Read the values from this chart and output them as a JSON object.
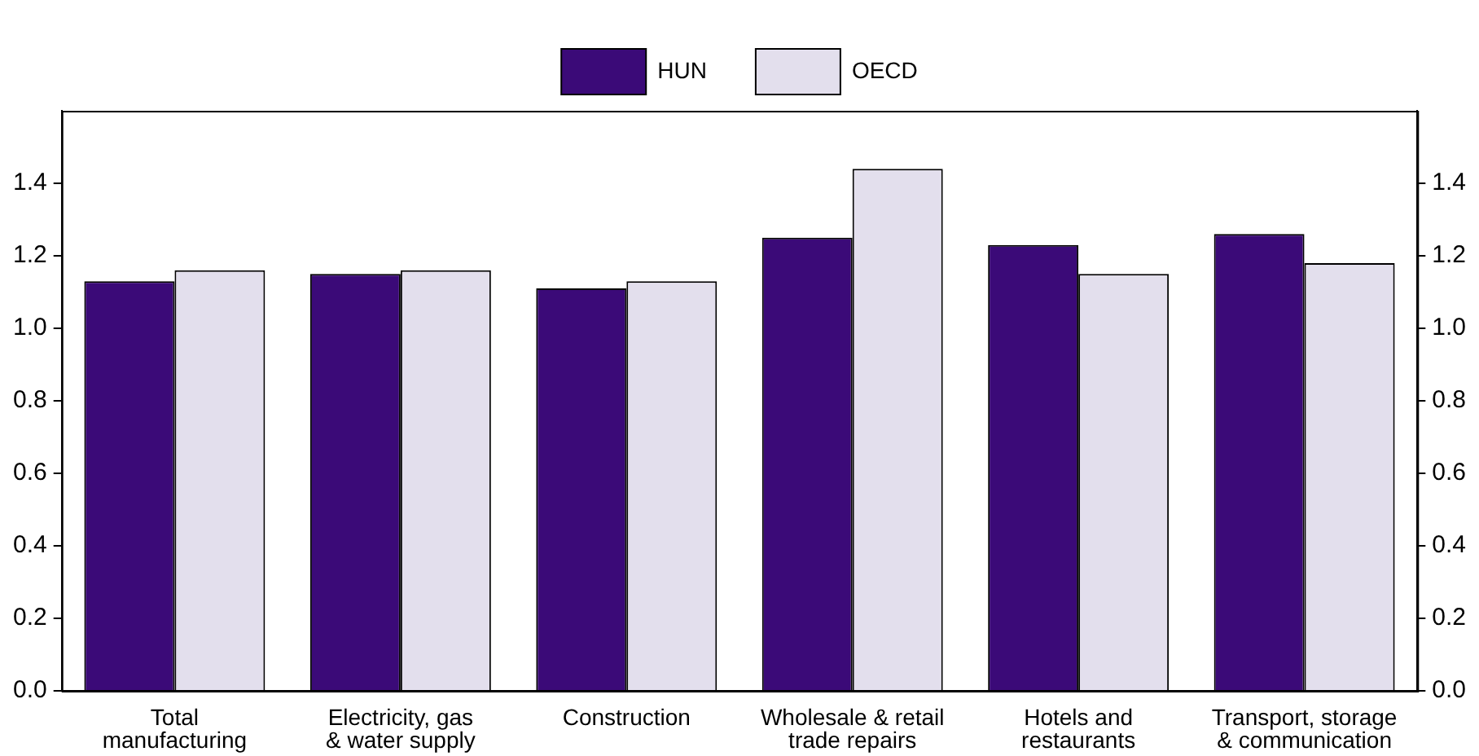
{
  "chart_data": {
    "type": "bar",
    "categories": [
      "Total manufacturing",
      "Electricity, gas & water supply",
      "Construction",
      "Wholesale & retail trade repairs",
      "Hotels and restaurants",
      "Transport, storage & communication"
    ],
    "series": [
      {
        "name": "HUN",
        "color": "#3b0a78",
        "values": [
          1.13,
          1.15,
          1.11,
          1.25,
          1.23,
          1.26
        ]
      },
      {
        "name": "OECD",
        "color": "#e3dfed",
        "values": [
          1.16,
          1.16,
          1.13,
          1.44,
          1.15,
          1.18
        ]
      }
    ],
    "ylim": [
      0,
      1.6
    ],
    "yticks": [
      {
        "value": 0,
        "label": "0.0"
      },
      0.2,
      0.4,
      0.6,
      0.8,
      {
        "value": 1,
        "label": "1.0"
      },
      1.2,
      1.4
    ],
    "y2lim": [
      0,
      1.6
    ],
    "y2ticks": [
      {
        "value": 0,
        "label": "0.0"
      },
      0.2,
      0.4,
      0.6,
      0.8,
      {
        "value": 1,
        "label": "1.0"
      },
      1.2,
      1.4
    ],
    "grid": false,
    "legend": "top"
  }
}
